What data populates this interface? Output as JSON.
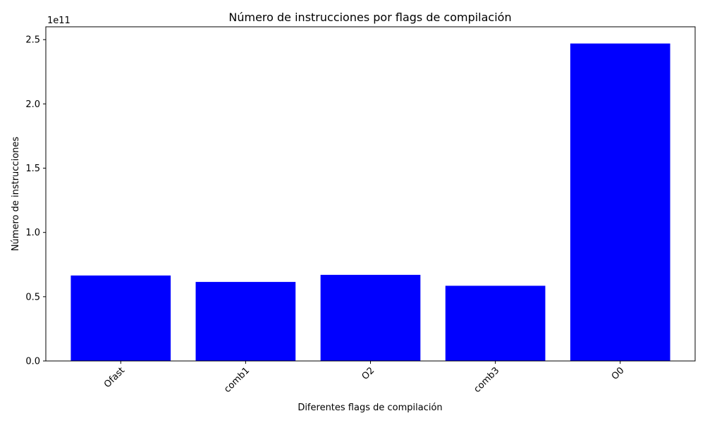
{
  "chart_data": {
    "type": "bar",
    "title": "Número de instrucciones por flags de compilación",
    "xlabel": "Diferentes flags de compilación",
    "ylabel": "Número de instrucciones",
    "y_offset_label": "1e11",
    "categories": [
      "Ofast",
      "comb1",
      "O2",
      "comb3",
      "O0"
    ],
    "values": [
      66500000000,
      61500000000,
      67000000000,
      58500000000,
      247000000000
    ],
    "ylim": [
      0,
      260000000000
    ],
    "yticks": [
      0,
      50000000000,
      100000000000,
      150000000000,
      200000000000,
      250000000000
    ],
    "ytick_labels": [
      "0.0",
      "0.5",
      "1.0",
      "1.5",
      "2.0",
      "2.5"
    ],
    "bar_color": "#0000ff",
    "grid": false,
    "xtick_rotation_deg": 45
  }
}
